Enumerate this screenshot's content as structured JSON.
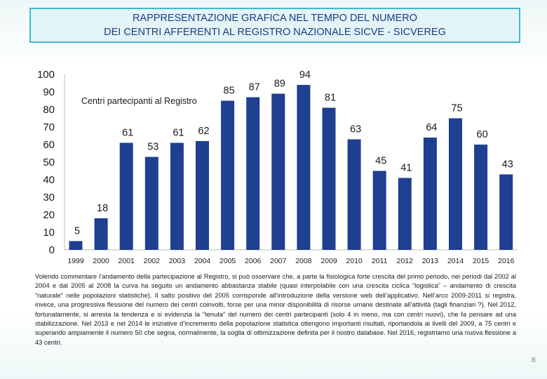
{
  "title": {
    "line1": "RAPPRESENTAZIONE GRAFICA NEL TEMPO DEL NUMERO",
    "line2": "DEI CENTRI AFFERENTI AL REGISTRO NAZIONALE SICVE - SICVEREG"
  },
  "chart_data": {
    "type": "bar",
    "title": "RAPPRESENTAZIONE GRAFICA NEL TEMPO DEL NUMERO DEI CENTRI AFFERENTI AL REGISTRO NAZIONALE SICVE - SICVEREG",
    "series_name": "Centri partecipanti al Registro",
    "categories": [
      "1999",
      "2000",
      "2001",
      "2002",
      "2003",
      "2004",
      "2005",
      "2006",
      "2007",
      "2008",
      "2009",
      "2010",
      "2011",
      "2012",
      "2013",
      "2014",
      "2015",
      "2016"
    ],
    "values": [
      5,
      18,
      61,
      53,
      61,
      62,
      85,
      87,
      89,
      94,
      81,
      63,
      45,
      41,
      64,
      75,
      60,
      43
    ],
    "y_ticks": [
      "0",
      "10",
      "20",
      "30",
      "40",
      "50",
      "60",
      "70",
      "80",
      "90",
      "100"
    ],
    "ylim": [
      0,
      100
    ],
    "xlabel": "",
    "ylabel": "",
    "bar_color": "#1f3f90"
  },
  "description": "Volendo commentare l’andamento della partecipazione al Registro, si può osservare che, a parte la fisiologica forte crescita del primo periodo, nei periodi dal 2002 al 2004 e dal 2005 al 2008 la curva ha seguito un andamento abbastanza stabile (quasi interpolabile con una crescita ciclica “logistica” – andamento di crescita “naturale” nelle popolazioni statistiche). Il salto positivo del 2005 corrisponde all’introduzione della versione web dell’applicativo. Nell’arco 2009-2011 si registra, invece, una progressiva flessione del numero dei centri coinvolti, forse per una minor disponibilità di risorse umane destinate all’attività (tagli finanziari ?). Nel 2012, fortunatamente, si arresta la tendenza e si evidenzia la \"tenuta\" del numero dei centri partecipanti (solo 4 in meno, ma con centri nuovi), che fa pensare ad una stabilizzazione. Nel 2013 e nel 2014 le iniziative d’incremento della popolazione statistica ottengono importanti risultati, riportandola ai livelli del 2009, a 75 centri e superando ampiamente il numero 50 che segna, normalmente, la soglia di ottimizzazione definita per il nostro database. Nel 2016, registriamo una nuova flessione a 43 centri.",
  "page_number": "8"
}
